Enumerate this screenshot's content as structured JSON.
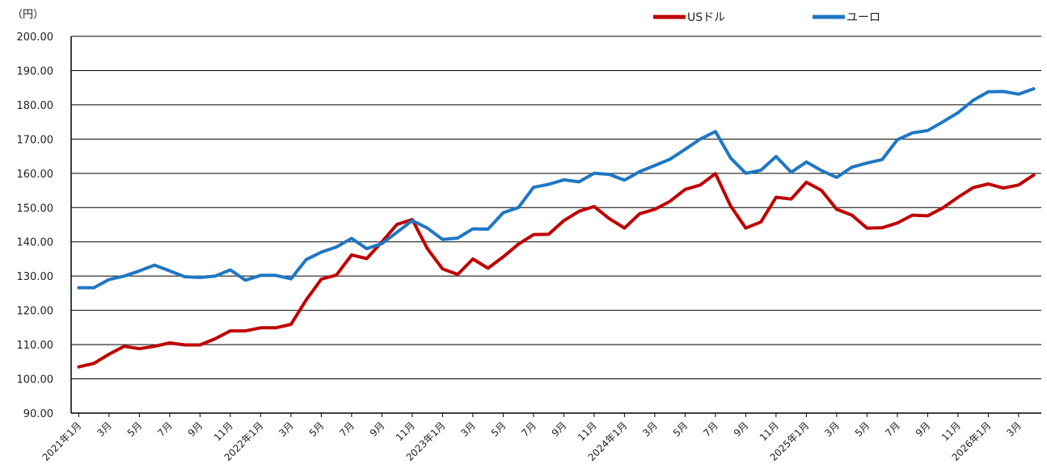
{
  "chart_data": {
    "type": "line",
    "unit_label": "（円）",
    "ylim": [
      90,
      200
    ],
    "y_ticks": [
      "90.00",
      "100.00",
      "110.00",
      "120.00",
      "130.00",
      "140.00",
      "150.00",
      "160.00",
      "170.00",
      "180.00",
      "190.00",
      "200.00"
    ],
    "x": [
      "2021年1月",
      "2月",
      "3月",
      "4月",
      "5月",
      "6月",
      "7月",
      "8月",
      "9月",
      "10月",
      "11月",
      "12月",
      "2022年1月",
      "2月",
      "3月",
      "4月",
      "5月",
      "6月",
      "7月",
      "8月",
      "9月",
      "10月",
      "11月",
      "12月",
      "2023年1月",
      "2月",
      "3月",
      "4月",
      "5月",
      "6月",
      "7月",
      "8月",
      "9月",
      "10月",
      "11月",
      "12月",
      "2024年1月",
      "2月",
      "3月",
      "4月",
      "5月",
      "6月",
      "7月",
      "8月",
      "9月",
      "10月",
      "11月",
      "12月",
      "2025年1月",
      "2月",
      "3月",
      "4月",
      "5月",
      "6月",
      "7月",
      "8月",
      "9月",
      "10月",
      "11月",
      "12月",
      "2026年1月",
      "2月",
      "3月",
      "4月"
    ],
    "x_tick_labels": [
      "2021年1月",
      "3月",
      "5月",
      "7月",
      "9月",
      "11月",
      "2022年1月",
      "3月",
      "5月",
      "7月",
      "9月",
      "11月",
      "2023年1月",
      "3月",
      "5月",
      "7月",
      "9月",
      "11月",
      "2024年1月",
      "3月",
      "5月",
      "7月",
      "9月",
      "11月",
      "2025年1月",
      "3月",
      "5月",
      "7月",
      "9月",
      "11月",
      "2026年1月",
      "3月"
    ],
    "grid": true,
    "legend_position": "top-right",
    "series": [
      {
        "name": "USドル",
        "color": "#c00000",
        "values": [
          103.5,
          104.5,
          107.2,
          109.5,
          108.8,
          109.5,
          110.5,
          109.9,
          109.9,
          111.7,
          114.0,
          114.0,
          114.9,
          114.9,
          115.9,
          123.0,
          129.1,
          130.3,
          136.2,
          135.1,
          140.0,
          145.1,
          146.5,
          138.0,
          132.1,
          130.5,
          135.0,
          132.3,
          135.6,
          139.3,
          142.1,
          142.2,
          146.2,
          148.9,
          150.3,
          146.8,
          144.0,
          148.2,
          149.5,
          151.8,
          155.3,
          156.6,
          159.9,
          150.5,
          144.0,
          145.8,
          153.0,
          152.5,
          157.4,
          155.0,
          149.5,
          147.8,
          144.0,
          144.1,
          145.5,
          147.8,
          147.6,
          149.9,
          153.0,
          155.8,
          156.9,
          155.7,
          156.6,
          159.5
        ]
      },
      {
        "name": "ユーロ",
        "color": "#1f77c4",
        "values": [
          126.6,
          126.6,
          129.0,
          130.0,
          131.5,
          133.2,
          131.5,
          129.8,
          129.6,
          130.0,
          131.8,
          128.8,
          130.2,
          130.2,
          129.2,
          134.8,
          137.0,
          138.5,
          141.0,
          138.0,
          139.5,
          142.8,
          146.2,
          144.0,
          140.7,
          141.1,
          143.8,
          143.7,
          148.5,
          150.0,
          155.9,
          156.8,
          158.1,
          157.5,
          160.0,
          159.7,
          158.0,
          160.5,
          162.3,
          164.1,
          167.0,
          170.0,
          172.2,
          164.5,
          160.0,
          160.9,
          164.9,
          160.3,
          163.3,
          160.8,
          158.8,
          161.8,
          163.0,
          164.0,
          169.8,
          171.8,
          172.5,
          175.0,
          177.7,
          181.3,
          183.8,
          183.9,
          183.1,
          184.7
        ]
      }
    ]
  }
}
